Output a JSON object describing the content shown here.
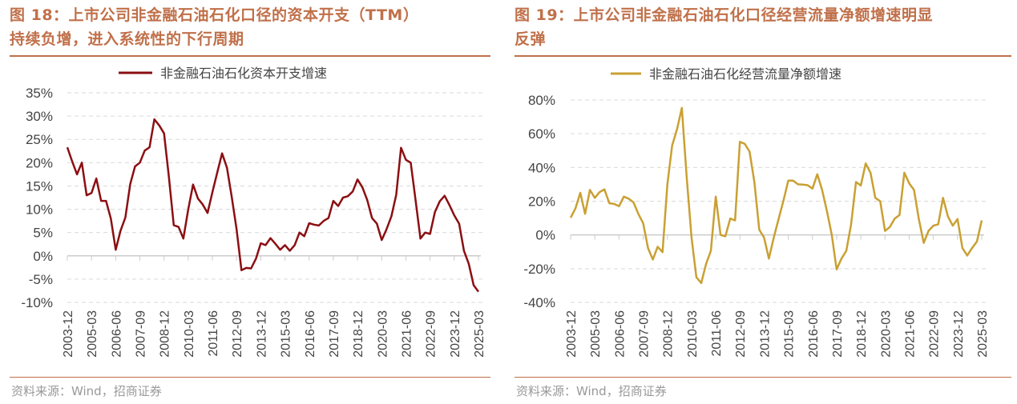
{
  "panels": [
    {
      "title_line1": "图 18：上市公司非金融石油石化口径的资本开支（TTM）",
      "title_line2": "持续负增，进入系统性的下行周期",
      "source": "资料来源：Wind，招商证券"
    },
    {
      "title_line1": "图 19：上市公司非金融石油石化口径经营流量净额增速明显",
      "title_line2": "反弹",
      "source": "资料来源：Wind，招商证券"
    }
  ],
  "chart_data": [
    {
      "type": "line",
      "title": "",
      "legend": "非金融石油石化资本开支增速",
      "legend_position": "top-center",
      "color": "#8b0f12",
      "ylim": [
        -10,
        35
      ],
      "yticks": [
        35,
        30,
        25,
        20,
        15,
        10,
        5,
        0,
        -5,
        -10
      ],
      "ytick_labels": [
        "35%",
        "30%",
        "25%",
        "20%",
        "15%",
        "10%",
        "5%",
        "0%",
        "-5%",
        "-10%"
      ],
      "xtick_labels": [
        "2003-12",
        "2005-03",
        "2006-06",
        "2007-09",
        "2008-12",
        "2010-03",
        "2011-06",
        "2012-09",
        "2013-12",
        "2015-03",
        "2016-06",
        "2017-09",
        "2018-12",
        "2020-03",
        "2021-06",
        "2022-09",
        "2023-12",
        "2025-03"
      ],
      "grid": "horizontal dashed",
      "frequency": "quarterly, 2003-12 to 2025-03",
      "values": [
        23.3,
        20.3,
        17.5,
        20,
        13,
        13.5,
        16.6,
        11.8,
        11.8,
        8,
        1.3,
        5.4,
        8.2,
        15.4,
        19.2,
        20,
        22.6,
        23.3,
        29.3,
        28,
        26.3,
        17,
        6.6,
        6.2,
        3.7,
        10,
        15.3,
        12.3,
        11,
        9.2,
        13.7,
        17.9,
        22,
        18.9,
        12.6,
        5.7,
        -3.1,
        -2.6,
        -2.7,
        -0.6,
        2.7,
        2.3,
        3.8,
        2.6,
        1.3,
        2.3,
        1.1,
        2.3,
        5,
        4.2,
        7,
        6.7,
        6.5,
        7.5,
        8.1,
        11.8,
        10.7,
        12.5,
        12.8,
        13.8,
        16.4,
        14.7,
        12,
        8.1,
        6.9,
        3.4,
        5.7,
        8.5,
        13.1,
        23.2,
        20.6,
        20,
        12,
        3.7,
        5,
        4.7,
        9.4,
        11.7,
        12.9,
        10.9,
        8.7,
        6.9,
        1.1,
        -1.7,
        -6.3,
        -7.7
      ]
    },
    {
      "type": "line",
      "title": "",
      "legend": "非金融石油石化经营流量净额增速",
      "legend_position": "top-center",
      "color": "#c9a033",
      "ylim": [
        -40,
        80
      ],
      "yticks": [
        80,
        60,
        40,
        20,
        0,
        -20,
        -40
      ],
      "ytick_labels": [
        "80%",
        "60%",
        "40%",
        "20%",
        "0%",
        "-20%",
        "-40%"
      ],
      "xtick_labels": [
        "2003-12",
        "2005-03",
        "2006-06",
        "2007-09",
        "2008-12",
        "2010-03",
        "2011-06",
        "2012-09",
        "2013-12",
        "2015-03",
        "2016-06",
        "2017-09",
        "2018-12",
        "2020-03",
        "2021-06",
        "2022-09",
        "2023-12",
        "2025-03"
      ],
      "grid": "horizontal dashed",
      "frequency": "quarterly, 2003-12 to 2025-03",
      "values": [
        10.2,
        15.7,
        25,
        12.5,
        26.7,
        22,
        25.4,
        27,
        18.8,
        18.4,
        17,
        22.7,
        21.5,
        19.3,
        12.5,
        7,
        -7.8,
        -14.6,
        -7,
        -10.2,
        29.8,
        53,
        62.7,
        75.3,
        34.5,
        -1.6,
        -25,
        -28.5,
        -17.3,
        -9.4,
        22.7,
        0,
        -0.8,
        9.7,
        8.6,
        55.2,
        54,
        49.4,
        31.4,
        3.1,
        -1.6,
        -14,
        -1.6,
        9.4,
        20.4,
        32.2,
        32.2,
        30,
        29.8,
        29.5,
        27.5,
        36,
        26.7,
        14,
        0,
        -20.4,
        -14,
        -9.4,
        6.3,
        31.4,
        29.3,
        42.4,
        36.9,
        22,
        20,
        2.4,
        4.7,
        9.7,
        11.8,
        36.9,
        30.6,
        26.7,
        9.4,
        -4.7,
        2.4,
        5.5,
        6.3,
        22,
        11,
        5.5,
        9.4,
        -7.8,
        -12.2,
        -7.8,
        -3.9,
        8.6
      ]
    }
  ]
}
